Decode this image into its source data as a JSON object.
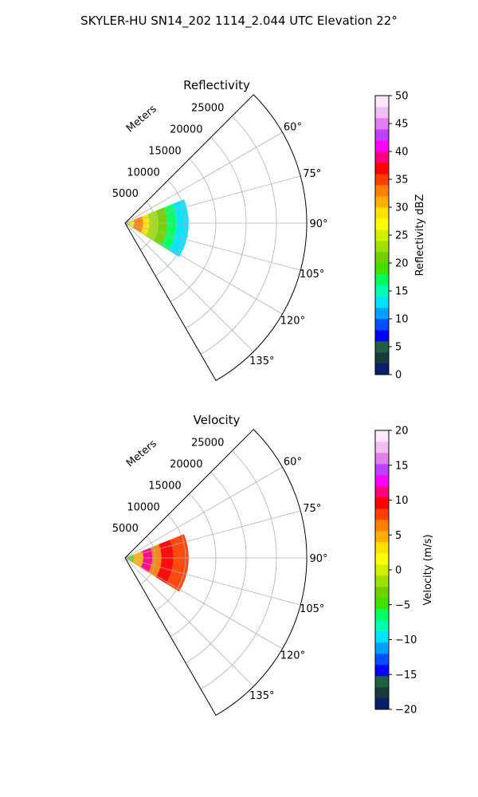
{
  "figure": {
    "suptitle": "SKYLER-HU  SN14_202  1114_2.044 UTC Elevation 22°"
  },
  "chart_data": [
    {
      "type": "heatmap",
      "projection": "polar-sector",
      "title": "Reflectivity",
      "range_label": "Meters",
      "range_ticks": [
        5000,
        10000,
        15000,
        20000,
        25000
      ],
      "range_tick_labels": [
        "5000",
        "10000",
        "15000",
        "20000",
        "25000"
      ],
      "rlim": [
        0,
        30000
      ],
      "azimuth_range_deg": [
        45,
        150
      ],
      "azimuth_ticks": [
        60,
        75,
        90,
        105,
        120,
        135
      ],
      "azimuth_tick_labels": [
        "60°",
        "75°",
        "90°",
        "105°",
        "120°",
        "135°"
      ],
      "grid": true,
      "colorbar": {
        "label": "Reflectivity dBZ",
        "min": 0,
        "max": 50,
        "ticks": [
          0,
          5,
          10,
          15,
          20,
          25,
          30,
          35,
          40,
          45,
          50
        ],
        "tick_labels": [
          "0",
          "5",
          "10",
          "15",
          "20",
          "25",
          "30",
          "35",
          "40",
          "45",
          "50"
        ],
        "colormap": [
          "#0a1e6e",
          "#1c3a3a",
          "#1e6040",
          "#0000ff",
          "#0050ff",
          "#00a0ff",
          "#00e0ff",
          "#00ffb0",
          "#00ff60",
          "#40e000",
          "#70d000",
          "#a0e000",
          "#d0f000",
          "#ffff00",
          "#ffe000",
          "#ffb000",
          "#ff8000",
          "#ff4000",
          "#ff0000",
          "#ff0080",
          "#ff00ff",
          "#c040ff",
          "#e080f0",
          "#f0c0f0",
          "#ffe8ff"
        ]
      },
      "echo_region": {
        "azimuth_deg": [
          68,
          122
        ],
        "range_m": [
          0,
          10500
        ]
      },
      "bands": [
        {
          "range_m": [
            0,
            1500
          ],
          "value": 26
        },
        {
          "range_m": [
            1500,
            3000
          ],
          "value": 33
        },
        {
          "range_m": [
            3000,
            4000
          ],
          "value": 28
        },
        {
          "range_m": [
            4000,
            5500
          ],
          "value": 22
        },
        {
          "range_m": [
            5500,
            7000
          ],
          "value": 20
        },
        {
          "range_m": [
            7000,
            8500
          ],
          "value": 16
        },
        {
          "range_m": [
            8500,
            10500
          ],
          "value": 12
        }
      ]
    },
    {
      "type": "heatmap",
      "projection": "polar-sector",
      "title": "Velocity",
      "range_label": "Meters",
      "range_ticks": [
        5000,
        10000,
        15000,
        20000,
        25000
      ],
      "range_tick_labels": [
        "5000",
        "10000",
        "15000",
        "20000",
        "25000"
      ],
      "rlim": [
        0,
        30000
      ],
      "azimuth_range_deg": [
        45,
        150
      ],
      "azimuth_ticks": [
        60,
        75,
        90,
        105,
        120,
        135
      ],
      "azimuth_tick_labels": [
        "60°",
        "75°",
        "90°",
        "105°",
        "120°",
        "135°"
      ],
      "grid": true,
      "colorbar": {
        "label": "Velocity (m/s)",
        "min": -20,
        "max": 20,
        "ticks": [
          -20,
          -15,
          -10,
          -5,
          0,
          5,
          10,
          15,
          20
        ],
        "tick_labels": [
          "−20",
          "−15",
          "−10",
          "−5",
          "0",
          "5",
          "10",
          "15",
          "20"
        ],
        "colormap": [
          "#0a1e6e",
          "#1c3a3a",
          "#1e6040",
          "#0000ff",
          "#0050ff",
          "#00a0ff",
          "#00e0ff",
          "#00ffb0",
          "#00ff60",
          "#40e000",
          "#70d000",
          "#a0e000",
          "#d0f000",
          "#ffff00",
          "#ffe000",
          "#ffb000",
          "#ff8000",
          "#ff4000",
          "#ff0000",
          "#ff0080",
          "#ff00ff",
          "#c040ff",
          "#e080f0",
          "#f0c0f0",
          "#ffe8ff"
        ]
      },
      "echo_region": {
        "azimuth_deg": [
          68,
          122
        ],
        "range_m": [
          0,
          10500
        ]
      },
      "bands": [
        {
          "range_m": [
            0,
            1500
          ],
          "value": -4
        },
        {
          "range_m": [
            1500,
            3000
          ],
          "value": 4
        },
        {
          "range_m": [
            3000,
            4500
          ],
          "value": 11
        },
        {
          "range_m": [
            4500,
            6000
          ],
          "value": 7
        },
        {
          "range_m": [
            6000,
            8000
          ],
          "value": 10
        },
        {
          "range_m": [
            8000,
            10500
          ],
          "value": 8
        }
      ]
    }
  ]
}
